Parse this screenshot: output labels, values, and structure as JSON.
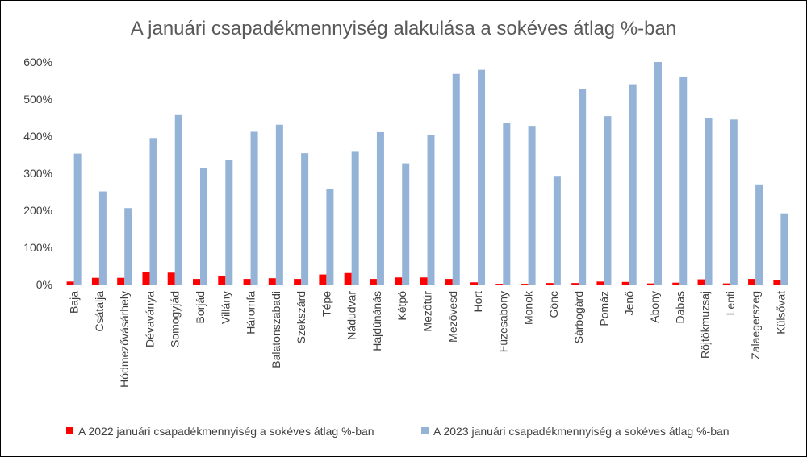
{
  "chart_data": {
    "type": "bar",
    "title": "A januári csapadékmennyiség alakulása a sokéves átlag %-ban",
    "xlabel": "",
    "ylabel": "",
    "ylim": [
      0,
      600
    ],
    "yticks": [
      0,
      100,
      200,
      300,
      400,
      500,
      600
    ],
    "ytick_labels": [
      "0%",
      "100%",
      "200%",
      "300%",
      "400%",
      "500%",
      "600%"
    ],
    "grid": false,
    "legend_position": "bottom",
    "categories": [
      "Baja",
      "Csátalja",
      "Hódmezővásárhely",
      "Dévaványa",
      "Somogyjád",
      "Borjád",
      "Villány",
      "Háromfa",
      "Balatonszabadi",
      "Szekszárd",
      "Tépe",
      "Nádudvar",
      "Hajdúnánás",
      "Kétpó",
      "Mezőtúr",
      "Mezövesd",
      "Hort",
      "Füzesabony",
      "Monok",
      "Gönc",
      "Sárbogárd",
      "Pomáz",
      "Jenő",
      "Abony",
      "Dabas",
      "Röjtökmuzsaj",
      "Lenti",
      "Zalaegerszeg",
      "Külsővat"
    ],
    "series": [
      {
        "name": "A 2022 januári csapadékmennyiség a sokéves átlag %-ban",
        "color": "#ff0000",
        "values": [
          8,
          18,
          18,
          34,
          32,
          15,
          24,
          15,
          17,
          15,
          27,
          31,
          15,
          19,
          19,
          15,
          6,
          2,
          2,
          4,
          4,
          8,
          7,
          3,
          5,
          14,
          3,
          15,
          13
        ]
      },
      {
        "name": "A 2023 januári csapadékmennyiség a sokéves átlag %-ban",
        "color": "#95b3d7",
        "values": [
          353,
          251,
          206,
          395,
          457,
          315,
          337,
          412,
          431,
          354,
          258,
          360,
          411,
          327,
          403,
          568,
          579,
          436,
          428,
          293,
          527,
          454,
          540,
          600,
          561,
          448,
          445,
          270,
          192
        ]
      }
    ]
  }
}
